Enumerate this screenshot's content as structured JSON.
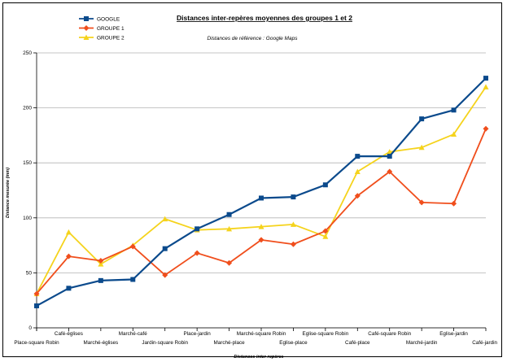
{
  "chart_data": {
    "type": "line",
    "title": "Distances inter-repères moyennes des groupes 1 et 2",
    "subtitle": "Distances de référence : Google Maps",
    "xlabel": "Distances inter-repères",
    "ylabel": "Distance mesurée (mm)",
    "ylim": [
      0,
      250
    ],
    "yticks": [
      0,
      50,
      100,
      150,
      200,
      250
    ],
    "grid": true,
    "legend_position": "top-left",
    "categories": [
      "Place-square Robin",
      "Café-églises",
      "Marché-églises",
      "Marché-café",
      "Jardin-square Robin",
      "Place-jardin",
      "Marché-place",
      "Marché-square Robin",
      "Eglise-place",
      "Eglise-square Robin",
      "Café-place",
      "Café-square Robin",
      "Marché-jardin",
      "Eglise-jardin",
      "Café-jardin"
    ],
    "series": [
      {
        "name": "GOOGLE",
        "color": "#0b4a8c",
        "marker": "square",
        "values": [
          20,
          36,
          43,
          44,
          72,
          90,
          103,
          118,
          119,
          130,
          156,
          156,
          190,
          198,
          227
        ]
      },
      {
        "name": "GROUPE 1",
        "color": "#f04e1c",
        "marker": "diamond",
        "values": [
          31,
          65,
          61,
          74,
          48,
          68,
          59,
          80,
          76,
          88,
          120,
          142,
          114,
          113,
          181
        ]
      },
      {
        "name": "GROUPE 2",
        "color": "#f5d31c",
        "marker": "triangle",
        "values": [
          31,
          87,
          58,
          75,
          99,
          89,
          90,
          92,
          94,
          83,
          142,
          160,
          164,
          176,
          219
        ]
      }
    ]
  }
}
